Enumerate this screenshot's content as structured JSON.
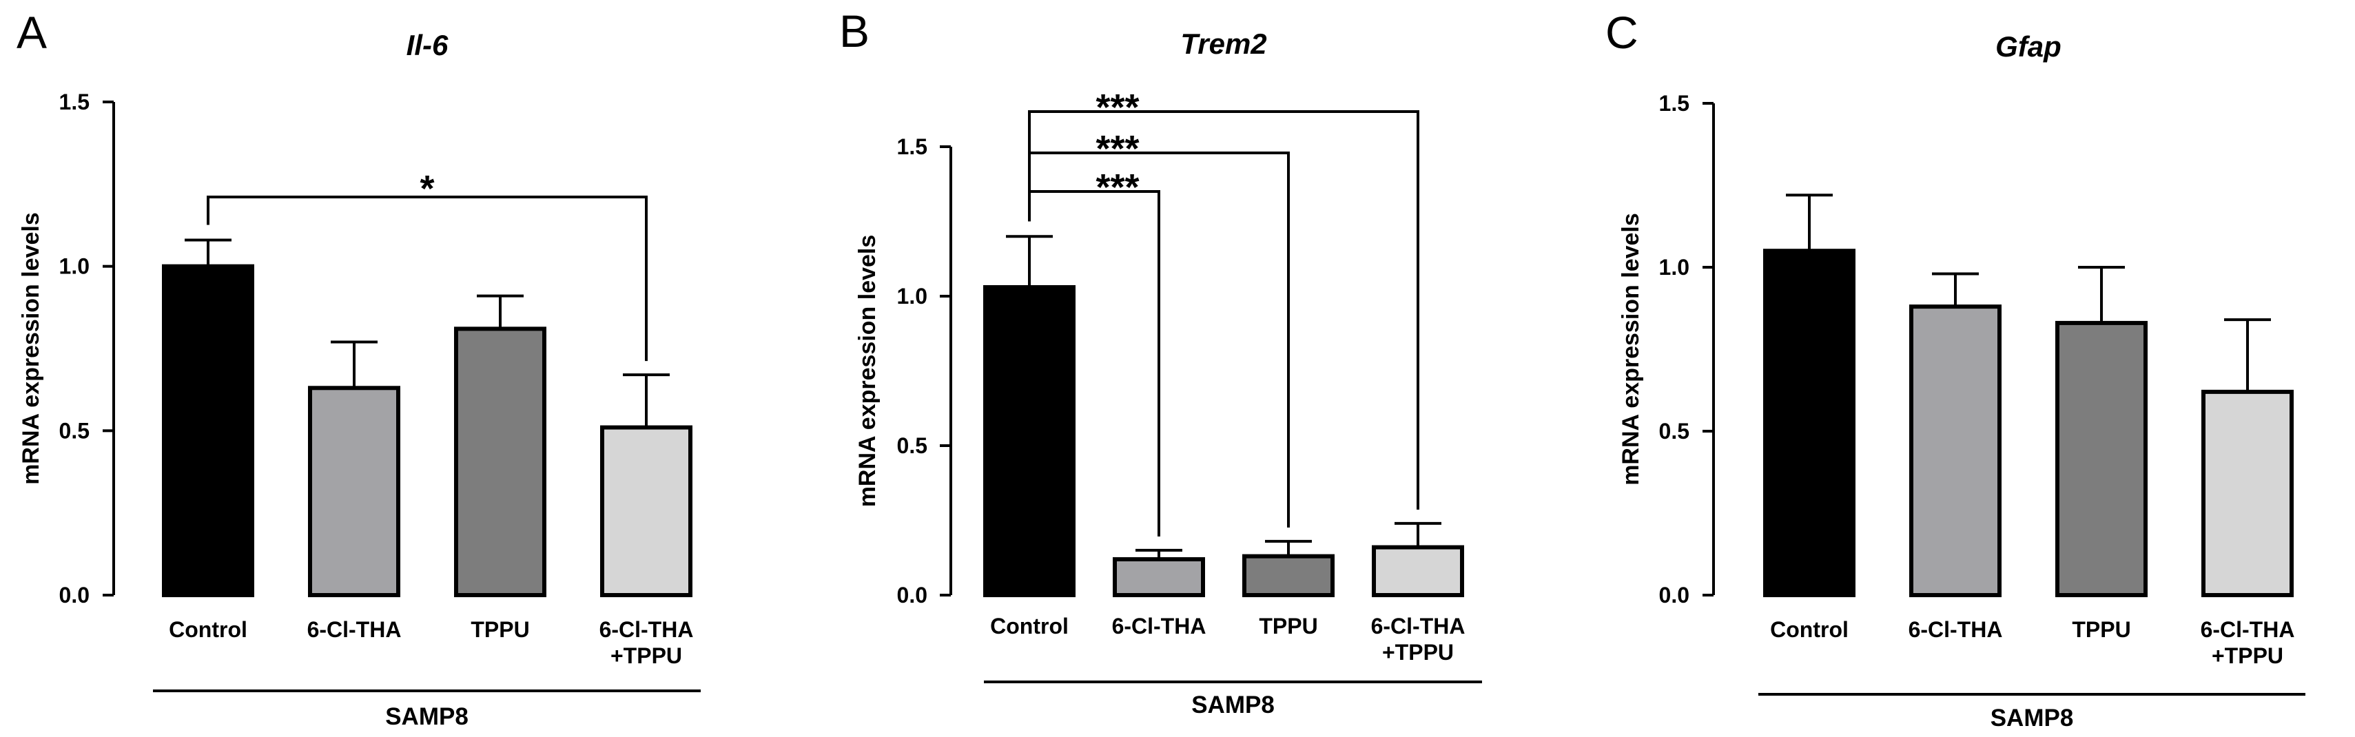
{
  "chart_data": [
    {
      "panel": "A",
      "type": "bar",
      "title": "Il-6",
      "ylabel": "mRNA expression levels",
      "ylim": [
        0,
        1.5
      ],
      "yticks": [
        "0.0",
        "0.5",
        "1.0",
        "1.5"
      ],
      "categories": [
        [
          "Control"
        ],
        [
          "6-Cl-THA"
        ],
        [
          "TPPU"
        ],
        [
          "6-Cl-THA",
          "+TPPU"
        ]
      ],
      "values": [
        1.0,
        0.63,
        0.81,
        0.51
      ],
      "errors": [
        0.08,
        0.14,
        0.1,
        0.16
      ],
      "colors": [
        "#000000",
        "#a3a3a6",
        "#7d7d7d",
        "#d6d6d6"
      ],
      "group_label": "SAMP8",
      "significance": [
        {
          "from": 0,
          "to": 3,
          "label": "*"
        }
      ]
    },
    {
      "panel": "B",
      "type": "bar",
      "title": "Trem2",
      "ylabel": "mRNA expression levels",
      "ylim": [
        0,
        1.5
      ],
      "yticks": [
        "0.0",
        "0.5",
        "1.0",
        "1.5"
      ],
      "categories": [
        [
          "Control"
        ],
        [
          "6-Cl-THA"
        ],
        [
          "TPPU"
        ],
        [
          "6-Cl-THA",
          "+TPPU"
        ]
      ],
      "values": [
        1.03,
        0.12,
        0.13,
        0.16
      ],
      "errors": [
        0.17,
        0.03,
        0.05,
        0.08
      ],
      "colors": [
        "#000000",
        "#a3a3a6",
        "#7d7d7d",
        "#d6d6d6"
      ],
      "group_label": "SAMP8",
      "significance": [
        {
          "from": 0,
          "to": 1,
          "label": "***"
        },
        {
          "from": 0,
          "to": 2,
          "label": "***"
        },
        {
          "from": 0,
          "to": 3,
          "label": "***"
        }
      ]
    },
    {
      "panel": "C",
      "type": "bar",
      "title": "Gfap",
      "ylabel": "mRNA expression levels",
      "ylim": [
        0,
        1.5
      ],
      "yticks": [
        "0.0",
        "0.5",
        "1.0",
        "1.5"
      ],
      "categories": [
        [
          "Control"
        ],
        [
          "6-Cl-THA"
        ],
        [
          "TPPU"
        ],
        [
          "6-Cl-THA",
          "+TPPU"
        ]
      ],
      "values": [
        1.05,
        0.88,
        0.83,
        0.62
      ],
      "errors": [
        0.17,
        0.1,
        0.17,
        0.22
      ],
      "colors": [
        "#000000",
        "#a3a3a6",
        "#7d7d7d",
        "#d6d6d6"
      ],
      "group_label": "SAMP8",
      "significance": []
    }
  ]
}
